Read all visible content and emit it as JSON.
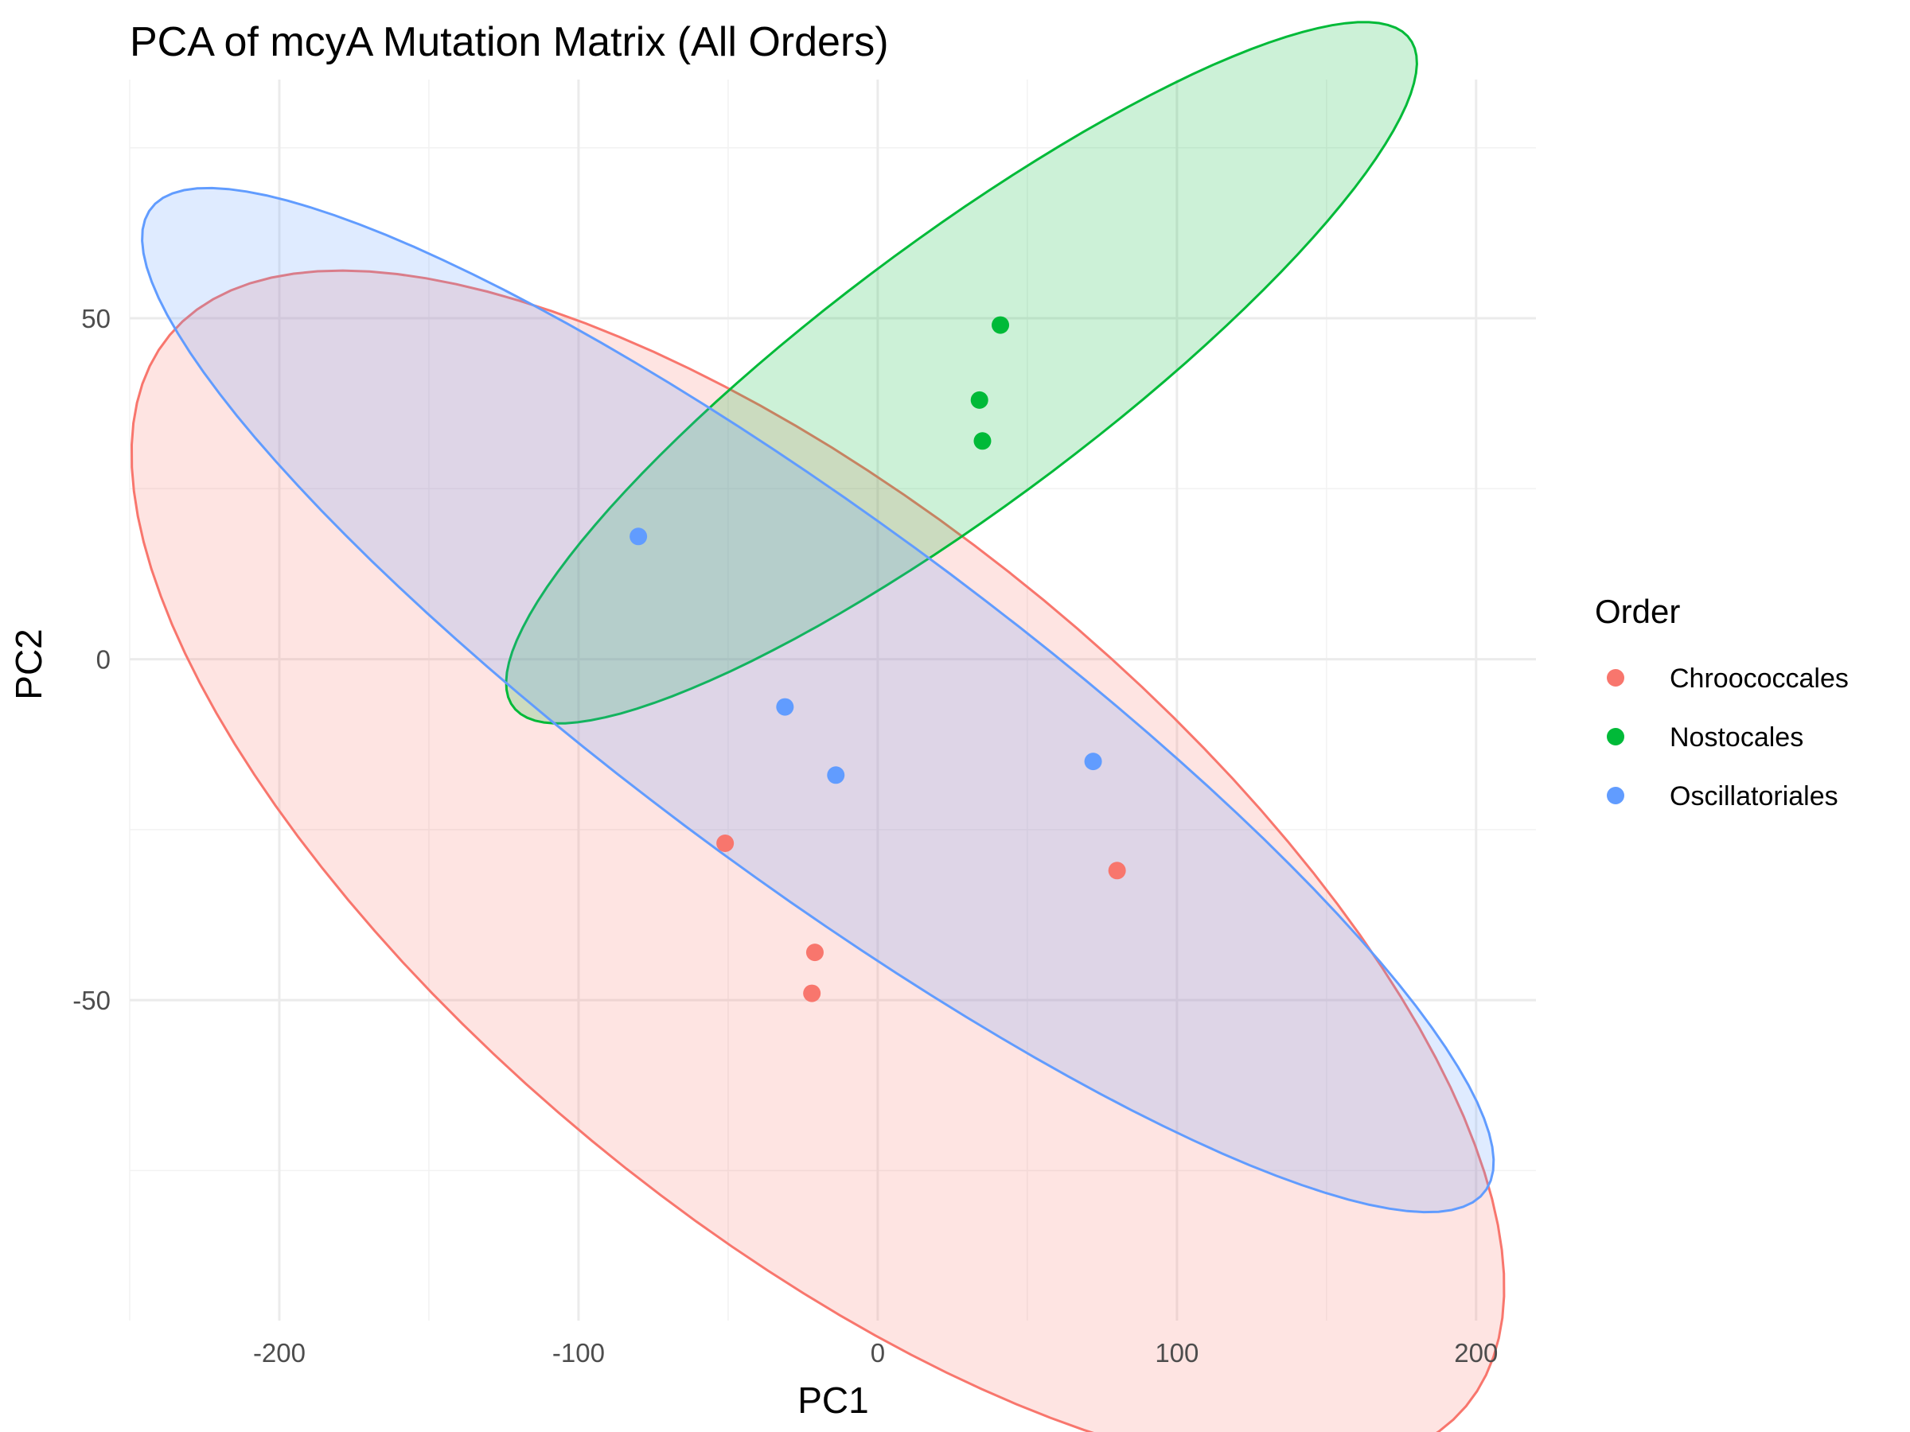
{
  "chart_data": {
    "type": "scatter",
    "title": "PCA of mcyA Mutation Matrix (All Orders)",
    "xlabel": "PC1",
    "ylabel": "PC2",
    "xlim": [
      -250,
      220
    ],
    "ylim": [
      -97,
      85
    ],
    "x_ticks": [
      -200,
      -100,
      0,
      100,
      200
    ],
    "y_ticks": [
      -50,
      0,
      50
    ],
    "x_tick_labels": [
      "-200",
      "-100",
      "0",
      "100",
      "200"
    ],
    "y_tick_labels": [
      "-50",
      "0",
      "50"
    ],
    "grid": true,
    "legend": {
      "title": "Order",
      "position": "right"
    },
    "series": [
      {
        "name": "Chroococcales",
        "color": "#F8766D",
        "points": [
          {
            "x": -51,
            "y": -27
          },
          {
            "x": 80,
            "y": -31
          },
          {
            "x": -21,
            "y": -43
          },
          {
            "x": -22,
            "y": -49
          }
        ],
        "ellipse": {
          "cx": -20,
          "cy": -31,
          "rx": 238,
          "ry": 61,
          "angle_deg": -16
        }
      },
      {
        "name": "Nostocales",
        "color": "#00BA38",
        "points": [
          {
            "x": 41,
            "y": 49
          },
          {
            "x": 34,
            "y": 38
          },
          {
            "x": 35,
            "y": 32
          }
        ],
        "ellipse": {
          "cx": 28,
          "cy": 42,
          "rx": 159,
          "ry": 23,
          "angle_deg": 17
        }
      },
      {
        "name": "Oscillatoriales",
        "color": "#619CFF",
        "points": [
          {
            "x": -80,
            "y": 18
          },
          {
            "x": -31,
            "y": -7
          },
          {
            "x": -14,
            "y": -17
          },
          {
            "x": 72,
            "y": -15
          }
        ],
        "ellipse": {
          "cx": -20,
          "cy": -6,
          "rx": 236,
          "ry": 31,
          "angle_deg": -17
        }
      }
    ]
  }
}
